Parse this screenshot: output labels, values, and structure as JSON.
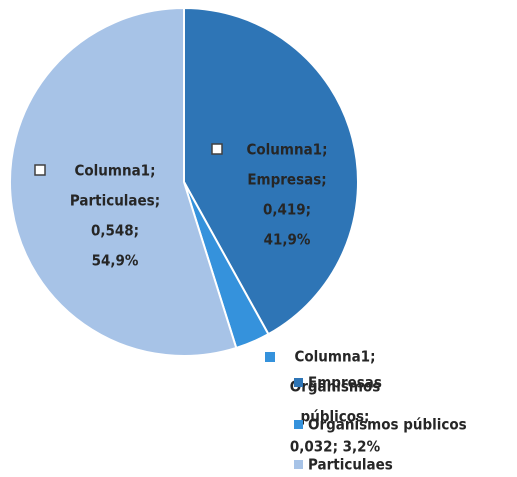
{
  "chart_data": {
    "type": "pie",
    "series_name": "Columna1",
    "categories": [
      "Empresas",
      "Organismos públicos",
      "Particulaes"
    ],
    "values": [
      0.419,
      0.032,
      0.548
    ],
    "value_labels": [
      "0,419",
      "0,032",
      "0,548"
    ],
    "colors": [
      "#2e75b6",
      "#3592dc",
      "#a7c3e7"
    ],
    "data_labels": [
      [
        "Columna1;",
        "Empresas;",
        "0,419;",
        "41,9%"
      ],
      [
        "Columna1;",
        "Organismos",
        "públicos;",
        "0,032; 3,2%"
      ],
      [
        "Columna1;",
        "Particulaes;",
        "0,548;",
        "54,9%"
      ]
    ],
    "legend": "bottom-right"
  }
}
